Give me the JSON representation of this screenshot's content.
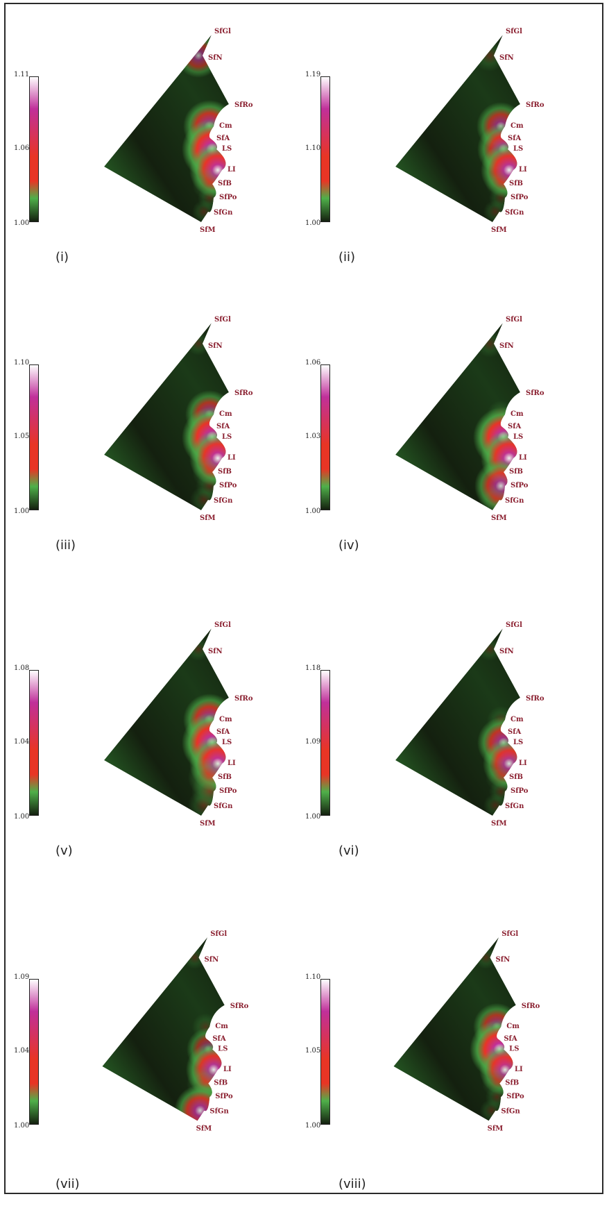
{
  "colors": {
    "dark_green": "#14200f",
    "green": "#2f7a2f",
    "bright_green": "#4fb04a",
    "red": "#e83525",
    "magenta": "#c0309a",
    "white": "#ffffff",
    "label": "#8a1f2f"
  },
  "landmarks": [
    "SfGl",
    "SfN",
    "SfRo",
    "Cm",
    "SfA",
    "LS",
    "LI",
    "SfB",
    "SfPo",
    "SfGn",
    "SfM"
  ],
  "panels": [
    {
      "caption": "(i)",
      "scale_max": "1.11",
      "scale_mid": "1.06",
      "scale_min": "1.00",
      "intensity": {
        "Cm": 0.8,
        "LS": 1.0,
        "LI": 0.9,
        "SfB": 0.3,
        "SfPo": 0.1,
        "SfGn": 0.1,
        "SfN": 0.6
      }
    },
    {
      "caption": "(ii)",
      "scale_max": "1.19",
      "scale_mid": "1.10",
      "scale_min": "1.00",
      "intensity": {
        "Cm": 0.7,
        "LS": 0.8,
        "LI": 0.9,
        "SfB": 0.2,
        "SfPo": 0.1,
        "SfGn": 0.1,
        "SfN": 0.3
      }
    },
    {
      "caption": "(iii)",
      "scale_max": "1.10",
      "scale_mid": "1.05",
      "scale_min": "1.00",
      "intensity": {
        "Cm": 0.7,
        "LS": 1.0,
        "LI": 0.9,
        "SfB": 0.3,
        "SfPo": 0.2,
        "SfGn": 0.2,
        "SfN": 0.1
      }
    },
    {
      "caption": "(iv)",
      "scale_max": "1.06",
      "scale_mid": "1.03",
      "scale_min": "1.00",
      "intensity": {
        "Cm": 0.2,
        "LS": 1.0,
        "LI": 0.9,
        "SfB": 0.2,
        "SfPo": 0.8,
        "SfGn": 0.3,
        "SfN": 0.2
      }
    },
    {
      "caption": "(v)",
      "scale_max": "1.08",
      "scale_mid": "1.04",
      "scale_min": "1.00",
      "intensity": {
        "Cm": 0.8,
        "LS": 1.0,
        "LI": 0.9,
        "SfB": 0.5,
        "SfPo": 0.4,
        "SfGn": 0.3,
        "SfN": 0.1
      }
    },
    {
      "caption": "(vi)",
      "scale_max": "1.18",
      "scale_mid": "1.09",
      "scale_min": "1.00",
      "intensity": {
        "Cm": 0.2,
        "LS": 0.8,
        "LI": 0.8,
        "SfB": 0.2,
        "SfPo": 0.1,
        "SfGn": 0.1,
        "SfN": 0.1
      }
    },
    {
      "caption": "(vii)",
      "scale_max": "1.09",
      "scale_mid": "1.04",
      "scale_min": "1.00",
      "intensity": {
        "Cm": 0.2,
        "LS": 0.6,
        "LI": 0.9,
        "SfB": 0.4,
        "SfPo": 0.3,
        "SfGn": 0.8,
        "SfN": 0.1
      }
    },
    {
      "caption": "(viii)",
      "scale_max": "1.10",
      "scale_mid": "1.05",
      "scale_min": "1.00",
      "intensity": {
        "Cm": 0.7,
        "LS": 1.0,
        "LI": 0.8,
        "SfB": 0.2,
        "SfPo": 0.1,
        "SfGn": 0.1,
        "SfN": 0.1
      }
    }
  ]
}
